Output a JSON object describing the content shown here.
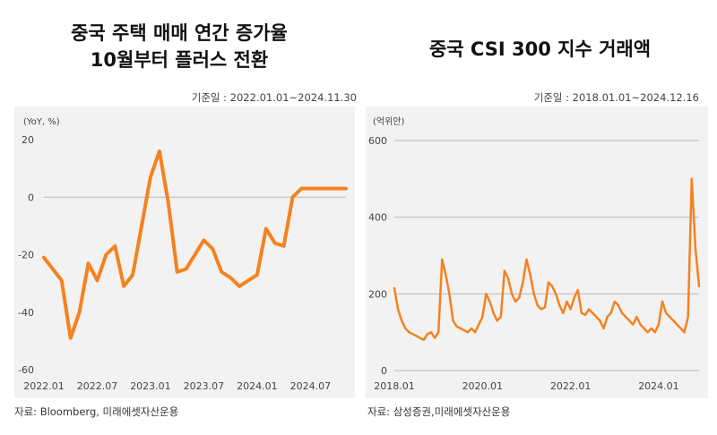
{
  "chart_data": [
    {
      "type": "line",
      "title": "중국 주택 매매 연간 증가율\n10월부터 플러스 전환",
      "title_lines": [
        "중국 주택 매매 연간 증가율",
        "10월부터 플러스 전환"
      ],
      "base_date": "기준일 : 2022.01.01~2024.11.30",
      "unit_label": "(YoY, %)",
      "source": "자료: Bloomberg, 미래에셋자산운용",
      "ylim": [
        -60,
        20
      ],
      "yticks": [
        20,
        0,
        -20,
        -40,
        -60
      ],
      "xlim": [
        "2022-01",
        "2024-11"
      ],
      "xticks": [
        "2022.01",
        "2022.07",
        "2023.01",
        "2023.07",
        "2024.01",
        "2024.07"
      ],
      "grid": "y-zero-line",
      "color": "#f58220",
      "series": [
        {
          "x": [
            "2022-01",
            "2022-02",
            "2022-03",
            "2022-04",
            "2022-05",
            "2022-06",
            "2022-07",
            "2022-08",
            "2022-09",
            "2022-10",
            "2022-11",
            "2022-12",
            "2023-01",
            "2023-02",
            "2023-03",
            "2023-04",
            "2023-05",
            "2023-06",
            "2023-07",
            "2023-08",
            "2023-09",
            "2023-10",
            "2023-11",
            "2023-12",
            "2024-01",
            "2024-02",
            "2024-03",
            "2024-04",
            "2024-05",
            "2024-06",
            "2024-07",
            "2024-08",
            "2024-09",
            "2024-10",
            "2024-11"
          ],
          "values": [
            -21,
            -25,
            -29,
            -49,
            -40,
            -23,
            -29,
            -20,
            -17,
            -31,
            -27,
            -10,
            7,
            16,
            -2,
            -26,
            -25,
            -20,
            -15,
            -18,
            -26,
            -28,
            -31,
            -29,
            -27,
            -11,
            -16,
            -17,
            0,
            3,
            3,
            3,
            3,
            3,
            3
          ]
        }
      ]
    },
    {
      "type": "line",
      "title": "중국 CSI 300 지수 거래액",
      "base_date": "기준일 : 2018.01.01~2024.12.16",
      "unit_label": "(억위안)",
      "source": "자료: 삼성증권,미래에셋자산운용",
      "ylim": [
        0,
        600
      ],
      "yticks": [
        600,
        400,
        200,
        0
      ],
      "xlim": [
        "2018-01",
        "2024-12"
      ],
      "xticks": [
        "2018.01",
        "2020.01",
        "2022.01",
        "2024.01"
      ],
      "grid": "y-gridlines",
      "color": "#f58220",
      "series": [
        {
          "x": [
            "2018-01",
            "2018-02",
            "2018-03",
            "2018-04",
            "2018-05",
            "2018-06",
            "2018-07",
            "2018-08",
            "2018-09",
            "2018-10",
            "2018-11",
            "2018-12",
            "2019-01",
            "2019-02",
            "2019-03",
            "2019-04",
            "2019-05",
            "2019-06",
            "2019-07",
            "2019-08",
            "2019-09",
            "2019-10",
            "2019-11",
            "2019-12",
            "2020-01",
            "2020-02",
            "2020-03",
            "2020-04",
            "2020-05",
            "2020-06",
            "2020-07",
            "2020-08",
            "2020-09",
            "2020-10",
            "2020-11",
            "2020-12",
            "2021-01",
            "2021-02",
            "2021-03",
            "2021-04",
            "2021-05",
            "2021-06",
            "2021-07",
            "2021-08",
            "2021-09",
            "2021-10",
            "2021-11",
            "2021-12",
            "2022-01",
            "2022-02",
            "2022-03",
            "2022-04",
            "2022-05",
            "2022-06",
            "2022-07",
            "2022-08",
            "2022-09",
            "2022-10",
            "2022-11",
            "2022-12",
            "2023-01",
            "2023-02",
            "2023-03",
            "2023-04",
            "2023-05",
            "2023-06",
            "2023-07",
            "2023-08",
            "2023-09",
            "2023-10",
            "2023-11",
            "2023-12",
            "2024-01",
            "2024-02",
            "2024-03",
            "2024-04",
            "2024-05",
            "2024-06",
            "2024-07",
            "2024-08",
            "2024-09",
            "2024-10",
            "2024-11",
            "2024-12"
          ],
          "values": [
            215,
            160,
            130,
            110,
            100,
            95,
            90,
            85,
            80,
            95,
            100,
            85,
            100,
            290,
            250,
            200,
            130,
            115,
            110,
            105,
            100,
            110,
            100,
            120,
            140,
            200,
            180,
            150,
            130,
            140,
            260,
            240,
            200,
            180,
            190,
            230,
            290,
            250,
            200,
            170,
            160,
            165,
            230,
            220,
            200,
            170,
            150,
            180,
            160,
            190,
            210,
            150,
            145,
            160,
            150,
            140,
            130,
            110,
            140,
            150,
            180,
            170,
            150,
            140,
            130,
            120,
            140,
            120,
            110,
            100,
            110,
            100,
            120,
            180,
            150,
            140,
            130,
            120,
            110,
            100,
            140,
            500,
            320,
            220
          ]
        }
      ]
    }
  ]
}
